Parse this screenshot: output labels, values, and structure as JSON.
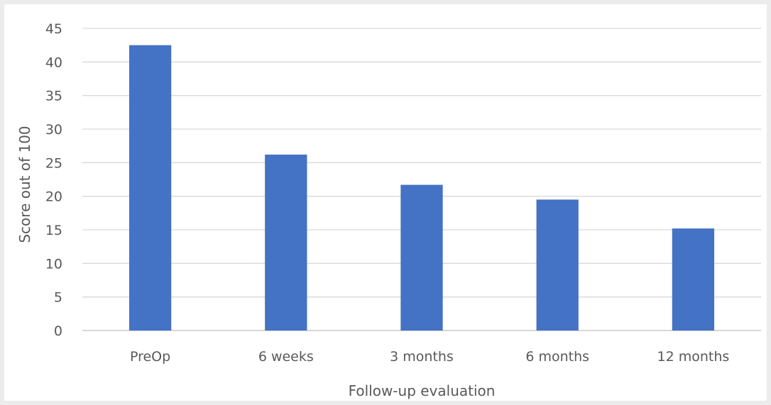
{
  "chart_data": {
    "type": "bar",
    "title": "",
    "xlabel": "Follow-up evaluation",
    "ylabel": "Score out of 100",
    "categories": [
      "PreOp",
      "6 weeks",
      "3 months",
      "6 months",
      "12 months"
    ],
    "values": [
      42.5,
      26.2,
      21.7,
      19.5,
      15.2
    ],
    "ylim": [
      0,
      45
    ],
    "yticks": [
      0,
      5,
      10,
      15,
      20,
      25,
      30,
      35,
      40,
      45
    ],
    "grid": true,
    "legend": "none",
    "colors": {
      "bar": "#4472c4",
      "grid": "#d9d9d9",
      "axis": "#bfbfbf",
      "text": "#595959"
    }
  }
}
